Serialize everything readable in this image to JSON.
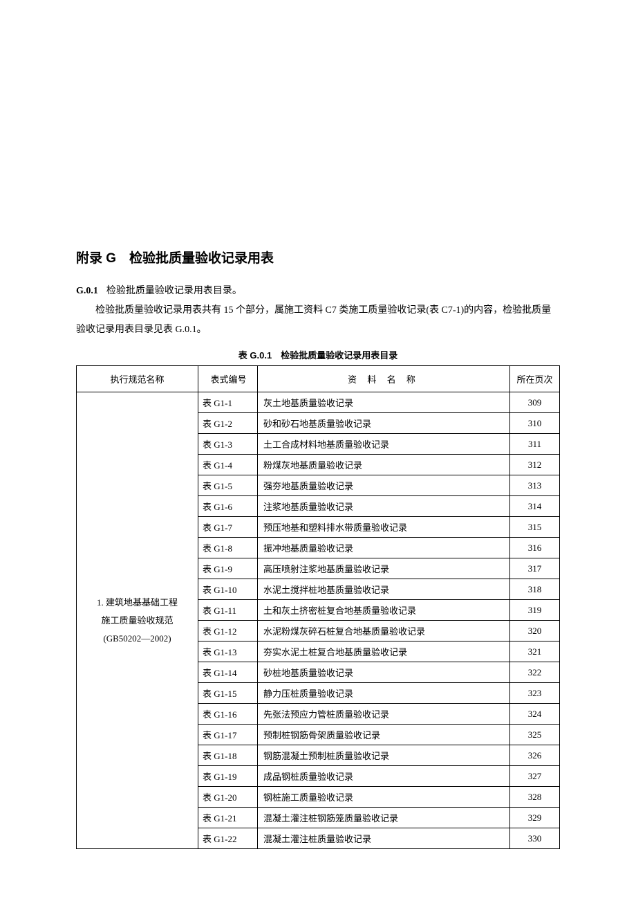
{
  "title": "附录 G　检验批质量验收记录用表",
  "section": {
    "num": "G.0.1",
    "text": "检验批质量验收记录用表目录。"
  },
  "paragraph": "检验批质量验收记录用表共有 15 个部分，属施工资料 C7 类施工质量验收记录(表 C7-1)的内容，检验批质量验收记录用表目录见表 G.0.1。",
  "table": {
    "caption": "表 G.0.1　检验批质量验收记录用表目录",
    "headers": {
      "spec": "执行规范名称",
      "code": "表式编号",
      "name": "资 料 名 称",
      "page": "所在页次"
    },
    "spec_group": {
      "line1": "1. 建筑地基基础工程",
      "line2": "施工质量验收规范",
      "line3": "(GB50202—2002)"
    },
    "rows": [
      {
        "code": "表 G1-1",
        "name": "灰土地基质量验收记录",
        "page": "309"
      },
      {
        "code": "表 G1-2",
        "name": "砂和砂石地基质量验收记录",
        "page": "310"
      },
      {
        "code": "表 G1-3",
        "name": "土工合成材料地基质量验收记录",
        "page": "311"
      },
      {
        "code": "表 G1-4",
        "name": "粉煤灰地基质量验收记录",
        "page": "312"
      },
      {
        "code": "表 G1-5",
        "name": "强夯地基质量验收记录",
        "page": "313"
      },
      {
        "code": "表 G1-6",
        "name": "注浆地基质量验收记录",
        "page": "314"
      },
      {
        "code": "表 G1-7",
        "name": "预压地基和塑料排水带质量验收记录",
        "page": "315"
      },
      {
        "code": "表 G1-8",
        "name": "振冲地基质量验收记录",
        "page": "316"
      },
      {
        "code": "表 G1-9",
        "name": "高压喷射注浆地基质量验收记录",
        "page": "317"
      },
      {
        "code": "表 G1-10",
        "name": "水泥土搅拌桩地基质量验收记录",
        "page": "318"
      },
      {
        "code": "表 G1-11",
        "name": "土和灰土挤密桩复合地基质量验收记录",
        "page": "319"
      },
      {
        "code": "表 G1-12",
        "name": "水泥粉煤灰碎石桩复合地基质量验收记录",
        "page": "320"
      },
      {
        "code": "表 G1-13",
        "name": "夯实水泥土桩复合地基质量验收记录",
        "page": "321"
      },
      {
        "code": "表 G1-14",
        "name": "砂桩地基质量验收记录",
        "page": "322"
      },
      {
        "code": "表 G1-15",
        "name": "静力压桩质量验收记录",
        "page": "323"
      },
      {
        "code": "表 G1-16",
        "name": "先张法预应力管桩质量验收记录",
        "page": "324"
      },
      {
        "code": "表 G1-17",
        "name": "预制桩钢筋骨架质量验收记录",
        "page": "325"
      },
      {
        "code": "表 G1-18",
        "name": "钢筋混凝土预制桩质量验收记录",
        "page": "326"
      },
      {
        "code": "表 G1-19",
        "name": "成品钢桩质量验收记录",
        "page": "327"
      },
      {
        "code": "表 G1-20",
        "name": "钢桩施工质量验收记录",
        "page": "328"
      },
      {
        "code": "表 G1-21",
        "name": "混凝土灌注桩钢筋笼质量验收记录",
        "page": "329"
      },
      {
        "code": "表 G1-22",
        "name": "混凝土灌注桩质量验收记录",
        "page": "330"
      }
    ]
  }
}
